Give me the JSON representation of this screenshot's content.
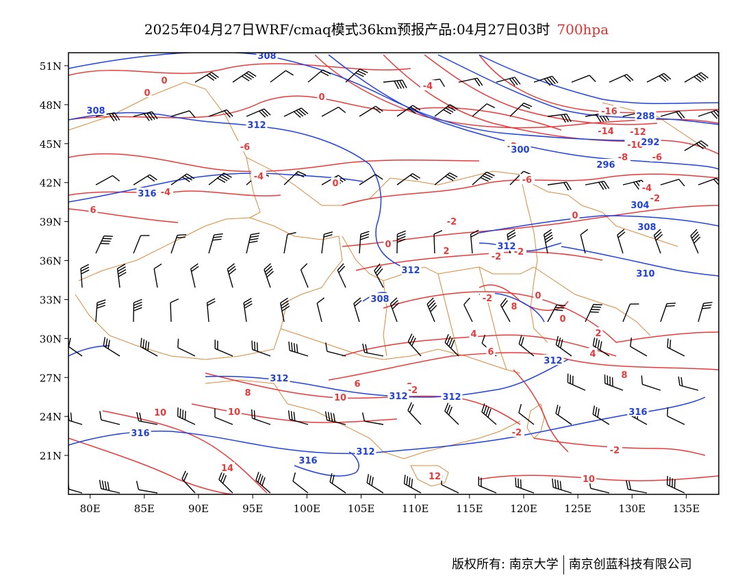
{
  "title": {
    "main": "2025年04月27日WRF/cmaq模式36km预报产品:04月27日03时",
    "level": "700hpa"
  },
  "map": {
    "lon_min": 78,
    "lon_max": 138,
    "lat_min": 18,
    "lat_max": 52,
    "lat_ticks": [
      "51N",
      "48N",
      "45N",
      "42N",
      "39N",
      "36N",
      "33N",
      "30N",
      "27N",
      "24N",
      "21N"
    ],
    "lon_ticks": [
      "80E",
      "85E",
      "90E",
      "95E",
      "100E",
      "105E",
      "110E",
      "115E",
      "120E",
      "125E",
      "130E",
      "135E"
    ],
    "colors": {
      "temperature": "#e83a3a",
      "height": "#2040e0",
      "wind": "#000000",
      "boundary": "#d9893a"
    },
    "temperature_labels": [
      "0",
      "0",
      "0",
      "-4",
      "0",
      "-6",
      "-2",
      "-4",
      "-6",
      "-8",
      "-12",
      "-14",
      "-16",
      "-10",
      "-6",
      "-4",
      "-4",
      "-2",
      "-2",
      "0",
      "-2",
      "-2",
      "-2",
      "0",
      "0",
      "0",
      "2",
      "4",
      "2",
      "4",
      "6",
      "6",
      "8",
      "8",
      "10",
      "10",
      "14",
      "12",
      "10",
      "8",
      "6",
      "8",
      "-2",
      "10",
      "-2",
      "-2"
    ],
    "height_labels": [
      "308",
      "308",
      "312",
      "312",
      "300",
      "296",
      "292",
      "288",
      "304",
      "308",
      "312",
      "310",
      "312",
      "312",
      "312",
      "312",
      "312",
      "316",
      "316",
      "316",
      "316",
      "308"
    ],
    "wind_barbs_note": "wind barbs"
  },
  "footer": {
    "copyright": "版权所有: 南京大学",
    "company": "南京创蓝科技有限公司"
  }
}
